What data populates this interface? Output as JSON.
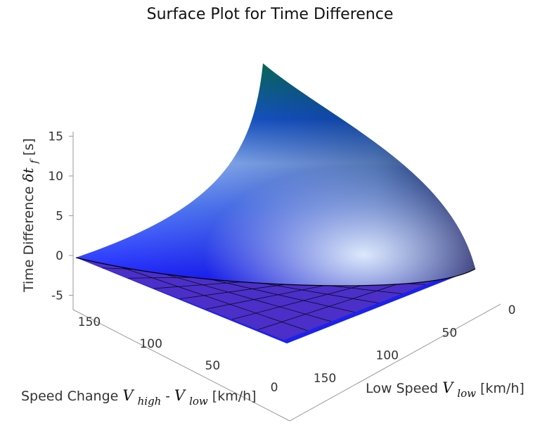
{
  "chart_data": {
    "type": "surface",
    "title": "Surface Plot for Time Difference",
    "x_axis": {
      "label_prefix": "Low Speed ",
      "label_var": "V",
      "label_sub": "low",
      "label_unit": " [km/h]",
      "ticks": [
        "0",
        "50",
        "100",
        "150"
      ],
      "range": [
        0,
        180
      ]
    },
    "y_axis": {
      "label_prefix": "Speed Change ",
      "label_var1": "V",
      "label_sub1": "high",
      "label_dash": "-",
      "label_var2": "V",
      "label_sub2": "low",
      "label_unit": " [km/h]",
      "ticks": [
        "0",
        "50",
        "100",
        "150"
      ],
      "range": [
        0,
        180
      ]
    },
    "z_axis": {
      "label_prefix": "Time Difference  ",
      "label_var": "δt",
      "label_sub": "f",
      "label_unit": " [s]",
      "ticks": [
        "-5",
        "0",
        "5",
        "10",
        "15"
      ],
      "range": [
        -5,
        15
      ]
    },
    "surfaces": [
      {
        "name": "",
        "description_free": true,
        "max_z": 18.5
      },
      {
        "name": "",
        "plane_z": 0
      }
    ],
    "colors": {
      "surface_low": "#1a1aff",
      "surface_mid": "#a8d4ff",
      "surface_high": "#0a8c3c",
      "plane_fill": "#4b2fc8",
      "grid": "#000000"
    }
  }
}
